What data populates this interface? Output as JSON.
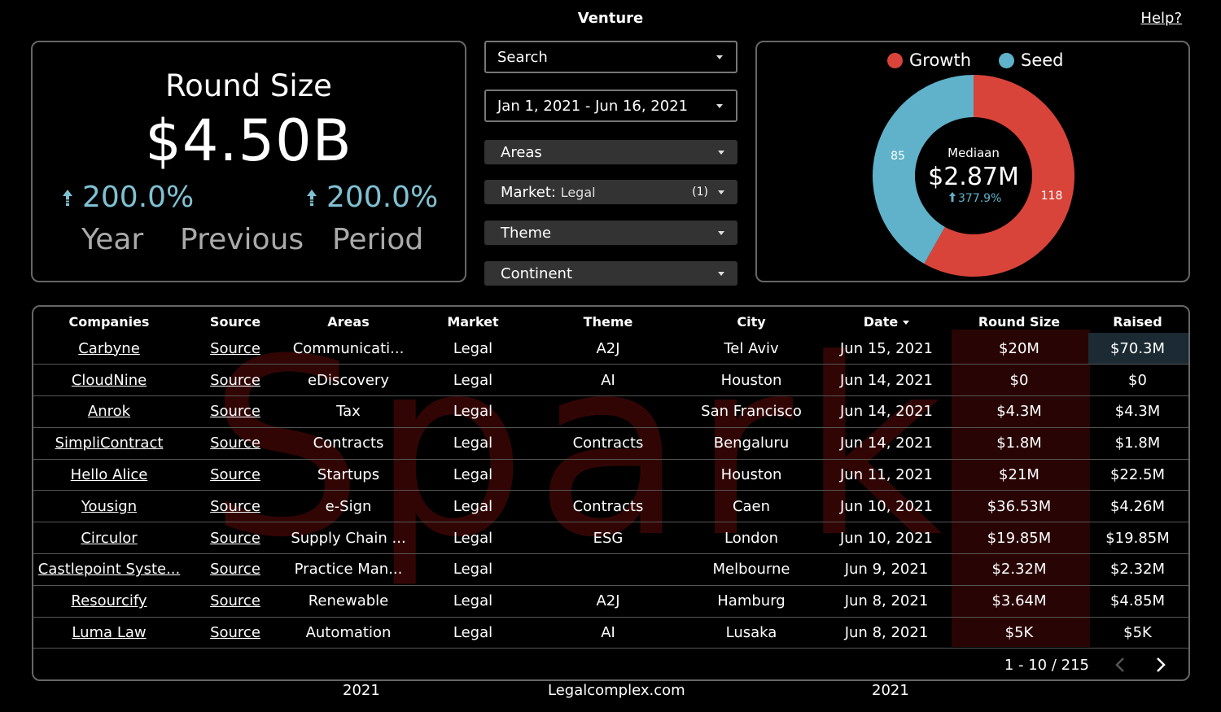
{
  "header": {
    "title": "Venture",
    "help_label": "Help?"
  },
  "kpi": {
    "title": "Round Size",
    "value": "$4.50B",
    "change_left": "200.0%",
    "change_right": "200.0%",
    "labels": [
      "Year",
      "Previous",
      "Period"
    ],
    "change_color": "#7fc1d3"
  },
  "filters": {
    "search": "Search",
    "date_range": "Jan 1, 2021 - Jun 16, 2021",
    "areas": "Areas",
    "market_label": "Market:",
    "market_value": "Legal",
    "market_count": "(1)",
    "theme": "Theme",
    "continent": "Continent"
  },
  "donut": {
    "legend": [
      {
        "name": "Growth",
        "color": "#d9443a"
      },
      {
        "name": "Seed",
        "color": "#5fb2c9"
      }
    ],
    "center_label": "Mediaan",
    "center_value": "$2.87M",
    "center_change": "377.9%",
    "growth_count": "118",
    "seed_count": "85"
  },
  "table": {
    "columns": [
      "Companies",
      "Source",
      "Areas",
      "Market",
      "Theme",
      "City",
      "Date",
      "Round Size",
      "Raised"
    ],
    "rows": [
      [
        "Carbyne",
        "Source",
        "Communicati...",
        "Legal",
        "A2J",
        "Tel Aviv",
        "Jun 15, 2021",
        "$20M",
        "$70.3M"
      ],
      [
        "CloudNine",
        "Source",
        "eDiscovery",
        "Legal",
        "AI",
        "Houston",
        "Jun 14, 2021",
        "$0",
        "$0"
      ],
      [
        "Anrok",
        "Source",
        "Tax",
        "Legal",
        "",
        "San Francisco",
        "Jun 14, 2021",
        "$4.3M",
        "$4.3M"
      ],
      [
        "SimpliContract",
        "Source",
        "Contracts",
        "Legal",
        "Contracts",
        "Bengaluru",
        "Jun 14, 2021",
        "$1.8M",
        "$1.8M"
      ],
      [
        "Hello Alice",
        "Source",
        "Startups",
        "Legal",
        "",
        "Houston",
        "Jun 11, 2021",
        "$21M",
        "$22.5M"
      ],
      [
        "Yousign",
        "Source",
        "e-Sign",
        "Legal",
        "Contracts",
        "Caen",
        "Jun 10, 2021",
        "$36.53M",
        "$4.26M"
      ],
      [
        "Circulor",
        "Source",
        "Supply Chain ...",
        "Legal",
        "ESG",
        "London",
        "Jun 10, 2021",
        "$19.85M",
        "$19.85M"
      ],
      [
        "Castlepoint Syste...",
        "Source",
        "Practice Man...",
        "Legal",
        "",
        "Melbourne",
        "Jun 9, 2021",
        "$2.32M",
        "$2.32M"
      ],
      [
        "Resourcify",
        "Source",
        "Renewable",
        "Legal",
        "A2J",
        "Hamburg",
        "Jun 8, 2021",
        "$3.64M",
        "$4.85M"
      ],
      [
        "Luma Law",
        "Source",
        "Automation",
        "Legal",
        "AI",
        "Lusaka",
        "Jun 8, 2021",
        "$5K",
        "$5K"
      ]
    ],
    "pagination": "1 - 10 / 215",
    "watermark": "Spark"
  },
  "footer": {
    "left": "2021",
    "center": "Legalcomplex.com",
    "right": "2021"
  }
}
